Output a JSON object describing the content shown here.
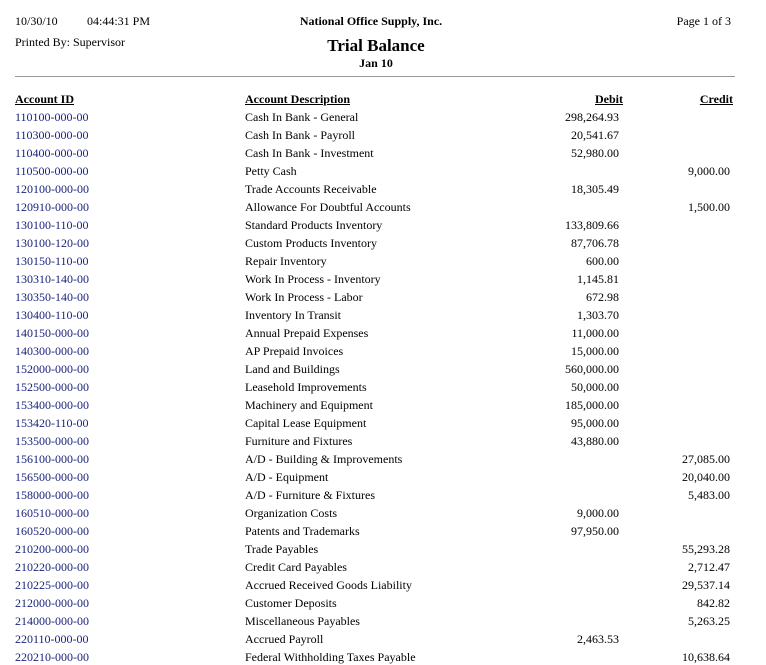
{
  "header": {
    "date": "10/30/10",
    "time": "04:44:31 PM",
    "company": "National Office Supply, Inc.",
    "page": "Page 1 of 3",
    "printed_by": "Printed By: Supervisor",
    "title": "Trial Balance",
    "period": "Jan 10"
  },
  "table": {
    "columns": [
      "Account ID",
      "Account Description",
      "Debit",
      "Credit"
    ],
    "rows": [
      [
        "110100-000-00",
        "Cash In Bank - General",
        "298,264.93",
        null
      ],
      [
        "110300-000-00",
        "Cash In Bank - Payroll",
        "20,541.67",
        null
      ],
      [
        "110400-000-00",
        "Cash In Bank - Investment",
        "52,980.00",
        null
      ],
      [
        "110500-000-00",
        "Petty Cash",
        null,
        "9,000.00"
      ],
      [
        "120100-000-00",
        "Trade Accounts Receivable",
        "18,305.49",
        null
      ],
      [
        "120910-000-00",
        "Allowance For Doubtful Accounts",
        null,
        "1,500.00"
      ],
      [
        "130100-110-00",
        "Standard Products Inventory",
        "133,809.66",
        null
      ],
      [
        "130100-120-00",
        "Custom Products Inventory",
        "87,706.78",
        null
      ],
      [
        "130150-110-00",
        "Repair Inventory",
        "600.00",
        null
      ],
      [
        "130310-140-00",
        "Work In Process - Inventory",
        "1,145.81",
        null
      ],
      [
        "130350-140-00",
        "Work In Process - Labor",
        "672.98",
        null
      ],
      [
        "130400-110-00",
        "Inventory In Transit",
        "1,303.70",
        null
      ],
      [
        "140150-000-00",
        "Annual Prepaid Expenses",
        "11,000.00",
        null
      ],
      [
        "140300-000-00",
        "AP Prepaid Invoices",
        "15,000.00",
        null
      ],
      [
        "152000-000-00",
        "Land and Buildings",
        "560,000.00",
        null
      ],
      [
        "152500-000-00",
        "Leasehold Improvements",
        "50,000.00",
        null
      ],
      [
        "153400-000-00",
        "Machinery and Equipment",
        "185,000.00",
        null
      ],
      [
        "153420-110-00",
        "Capital Lease Equipment",
        "95,000.00",
        null
      ],
      [
        "153500-000-00",
        "Furniture and Fixtures",
        "43,880.00",
        null
      ],
      [
        "156100-000-00",
        "A/D - Building & Improvements",
        null,
        "27,085.00"
      ],
      [
        "156500-000-00",
        "A/D - Equipment",
        null,
        "20,040.00"
      ],
      [
        "158000-000-00",
        "A/D - Furniture & Fixtures",
        null,
        "5,483.00"
      ],
      [
        "160510-000-00",
        "Organization Costs",
        "9,000.00",
        null
      ],
      [
        "160520-000-00",
        "Patents and Trademarks",
        "97,950.00",
        null
      ],
      [
        "210200-000-00",
        "Trade Payables",
        null,
        "55,293.28"
      ],
      [
        "210220-000-00",
        "Credit Card Payables",
        null,
        "2,712.47"
      ],
      [
        "210225-000-00",
        "Accrued Received Goods Liability",
        null,
        "29,537.14"
      ],
      [
        "212000-000-00",
        "Customer Deposits",
        null,
        "842.82"
      ],
      [
        "214000-000-00",
        "Miscellaneous Payables",
        null,
        "5,263.25"
      ],
      [
        "220110-000-00",
        "Accrued Payroll",
        "2,463.53",
        null
      ],
      [
        "220210-000-00",
        "Federal Withholding Taxes Payable",
        null,
        "10,638.64"
      ]
    ]
  }
}
